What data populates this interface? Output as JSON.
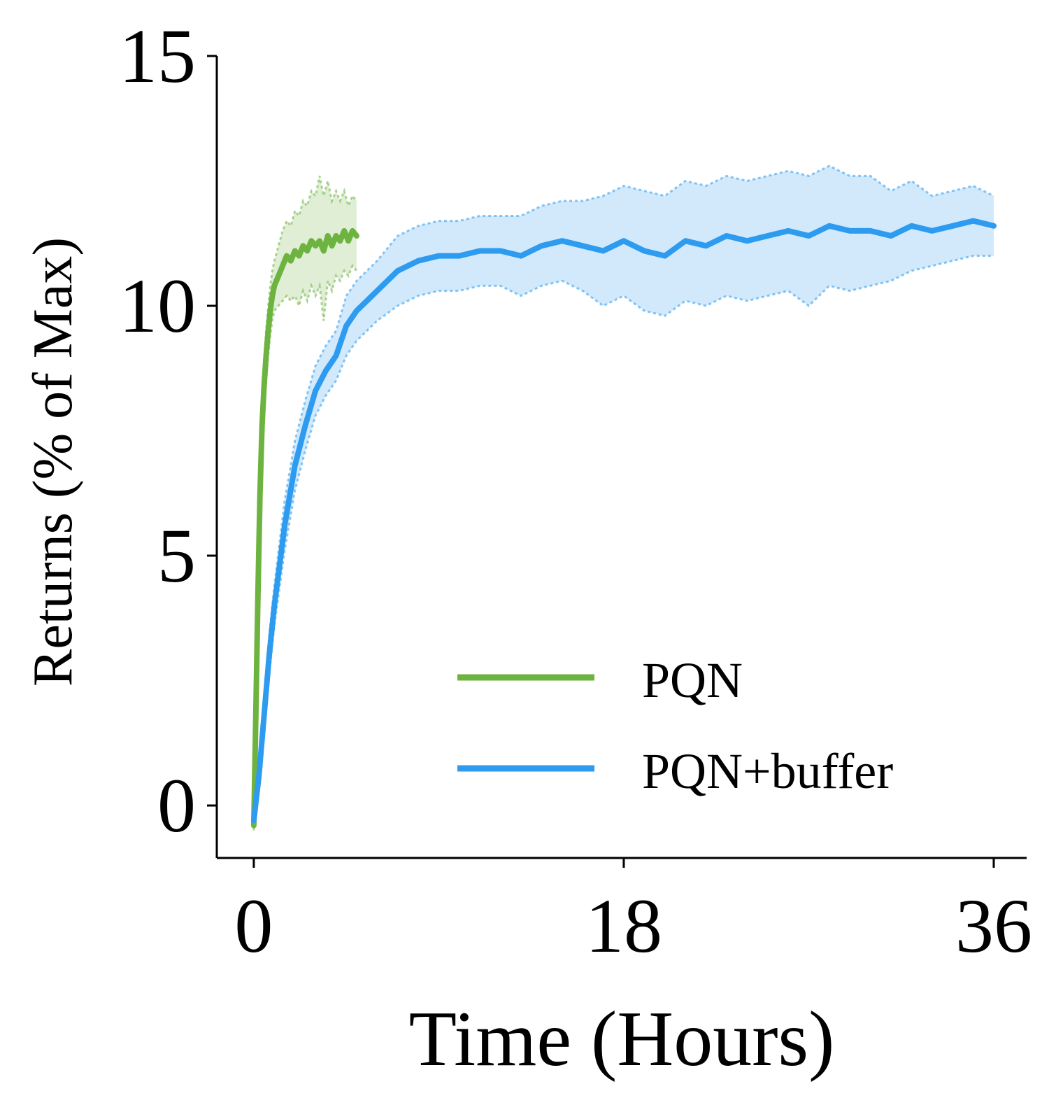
{
  "chart_data": {
    "type": "line",
    "title": "",
    "xlabel": "Time (Hours)",
    "ylabel": "Returns (% of Max)",
    "xlim": [
      -1.8,
      37.6
    ],
    "ylim": [
      -1.05,
      15
    ],
    "xticks": [
      0,
      18,
      36
    ],
    "xtick_labels": [
      "0",
      "18",
      "36"
    ],
    "yticks": [
      0,
      5,
      10,
      15
    ],
    "ytick_labels": [
      "0",
      "5",
      "10",
      "15"
    ],
    "grid": false,
    "legend_position": "bottom-right",
    "series": [
      {
        "name": "PQN",
        "color": "#6db33f",
        "x": [
          0,
          0.1,
          0.2,
          0.3,
          0.4,
          0.5,
          0.6,
          0.7,
          0.8,
          0.9,
          1.0,
          1.2,
          1.4,
          1.6,
          1.8,
          2.0,
          2.2,
          2.4,
          2.6,
          2.8,
          3.0,
          3.2,
          3.4,
          3.6,
          3.8,
          4.0,
          4.2,
          4.4,
          4.6,
          4.8,
          5.0
        ],
        "y": [
          -0.4,
          1.8,
          4.2,
          6.2,
          7.6,
          8.4,
          9.0,
          9.5,
          9.9,
          10.2,
          10.4,
          10.6,
          10.8,
          11.0,
          10.9,
          11.1,
          11.0,
          11.2,
          11.1,
          11.3,
          11.2,
          11.3,
          11.1,
          11.4,
          11.2,
          11.4,
          11.3,
          11.5,
          11.3,
          11.5,
          11.4
        ],
        "band_low": [
          -0.5,
          1.3,
          3.6,
          5.6,
          7.0,
          7.9,
          8.5,
          9.0,
          9.4,
          9.7,
          9.9,
          10.0,
          10.1,
          10.2,
          10.1,
          10.2,
          10.0,
          10.3,
          10.1,
          10.4,
          10.2,
          10.4,
          9.7,
          10.5,
          10.3,
          10.6,
          10.5,
          10.7,
          10.6,
          10.8,
          10.7
        ],
        "band_high": [
          -0.3,
          2.3,
          4.8,
          6.8,
          8.2,
          8.9,
          9.5,
          10.0,
          10.4,
          10.7,
          10.9,
          11.2,
          11.5,
          11.7,
          11.6,
          11.9,
          11.8,
          12.1,
          12.0,
          12.3,
          12.2,
          12.6,
          12.2,
          12.5,
          12.1,
          12.3,
          12.1,
          12.3,
          12.0,
          12.2,
          12.1
        ]
      },
      {
        "name": "PQN+buffer",
        "color": "#2d9bef",
        "x": [
          0,
          0.25,
          0.5,
          0.75,
          1,
          1.5,
          2,
          2.5,
          3,
          3.5,
          4,
          4.5,
          5,
          5.5,
          6,
          7,
          8,
          9,
          10,
          11,
          12,
          13,
          14,
          15,
          16,
          17,
          18,
          19,
          20,
          21,
          22,
          23,
          24,
          25,
          26,
          27,
          28,
          29,
          30,
          31,
          32,
          33,
          34,
          35,
          36
        ],
        "y": [
          -0.3,
          0.6,
          1.8,
          3.0,
          4.0,
          5.6,
          6.8,
          7.6,
          8.3,
          8.7,
          9.0,
          9.6,
          9.9,
          10.1,
          10.3,
          10.7,
          10.9,
          11.0,
          11.0,
          11.1,
          11.1,
          11.0,
          11.2,
          11.3,
          11.2,
          11.1,
          11.3,
          11.1,
          11.0,
          11.3,
          11.2,
          11.4,
          11.3,
          11.4,
          11.5,
          11.4,
          11.6,
          11.5,
          11.5,
          11.4,
          11.6,
          11.5,
          11.6,
          11.7,
          11.6
        ],
        "band_low": [
          -0.4,
          0.4,
          1.5,
          2.6,
          3.6,
          5.1,
          6.3,
          7.1,
          7.8,
          8.2,
          8.5,
          9.0,
          9.3,
          9.5,
          9.7,
          10.0,
          10.2,
          10.3,
          10.3,
          10.4,
          10.4,
          10.2,
          10.4,
          10.5,
          10.3,
          10.0,
          10.2,
          9.9,
          9.8,
          10.1,
          10.0,
          10.2,
          10.1,
          10.2,
          10.3,
          10.0,
          10.4,
          10.3,
          10.4,
          10.5,
          10.7,
          10.8,
          10.9,
          11.0,
          11.0
        ],
        "band_high": [
          -0.2,
          0.8,
          2.1,
          3.4,
          4.4,
          6.1,
          7.3,
          8.1,
          8.8,
          9.2,
          9.5,
          10.2,
          10.5,
          10.7,
          10.9,
          11.4,
          11.6,
          11.7,
          11.7,
          11.8,
          11.8,
          11.8,
          12.0,
          12.1,
          12.1,
          12.2,
          12.4,
          12.3,
          12.2,
          12.5,
          12.4,
          12.6,
          12.5,
          12.6,
          12.7,
          12.6,
          12.8,
          12.6,
          12.6,
          12.3,
          12.5,
          12.2,
          12.3,
          12.4,
          12.2
        ]
      }
    ]
  }
}
